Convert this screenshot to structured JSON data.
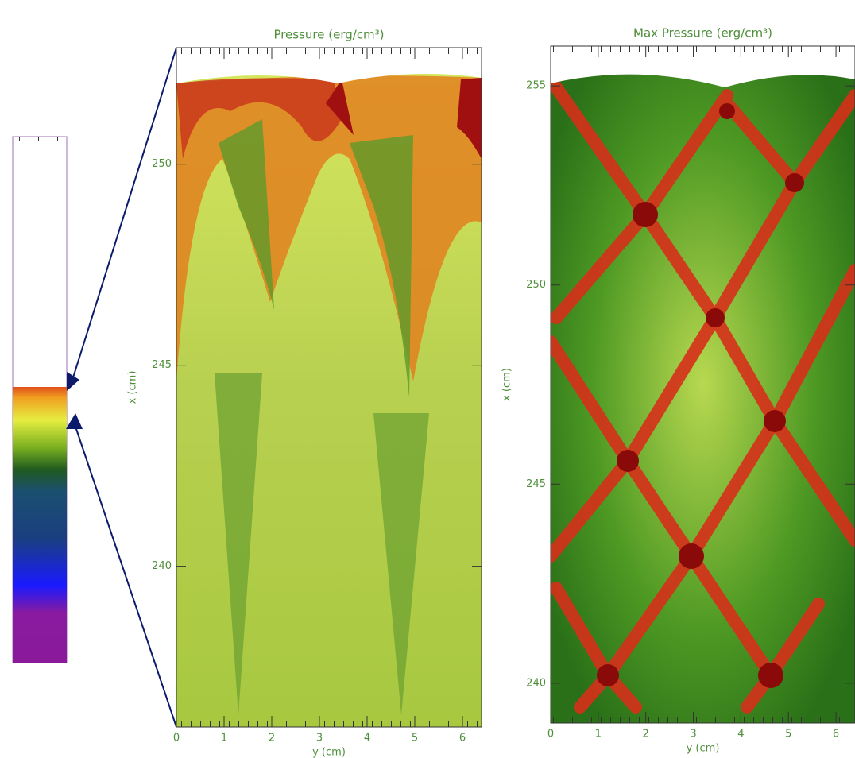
{
  "chart_data": [
    {
      "type": "heatmap",
      "title": "Pressure (erg/cm³)",
      "xlabel": "y (cm)",
      "ylabel": "x (cm)",
      "xlim": [
        0,
        6.4
      ],
      "ylim": [
        236,
        252.9
      ],
      "xticks": [
        0,
        1,
        2,
        3,
        4,
        5,
        6
      ],
      "yticks": [
        240,
        245,
        250
      ]
    },
    {
      "type": "heatmap",
      "title": "Max Pressure (erg/cm³)",
      "xlabel": "y (cm)",
      "ylabel": "x (cm)",
      "xlim": [
        0,
        6.4
      ],
      "ylim": [
        239,
        256
      ],
      "xticks": [
        0,
        1,
        2,
        3,
        4,
        5,
        6
      ],
      "yticks": [
        240,
        245,
        250,
        255
      ]
    }
  ]
}
